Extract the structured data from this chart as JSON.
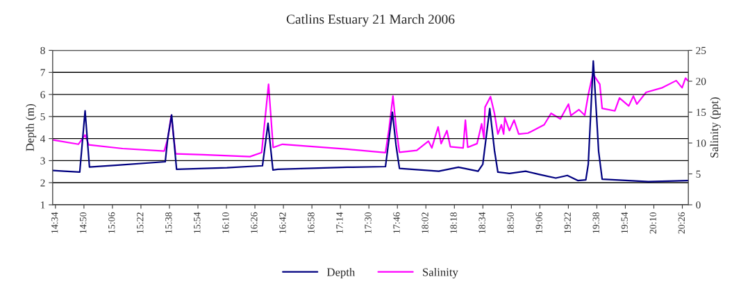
{
  "chart_data": {
    "type": "line",
    "title": "Catlins Estuary 21 March 2006",
    "ylabel": "Depth (m)",
    "y2label": "Salinity (ppt)",
    "xlim": [
      14.54,
      20.49
    ],
    "xticks": [
      {
        "value": 14.5667,
        "label": "14:34"
      },
      {
        "value": 14.8333,
        "label": "14:50"
      },
      {
        "value": 15.1,
        "label": "15:06"
      },
      {
        "value": 15.3667,
        "label": "15:22"
      },
      {
        "value": 15.6333,
        "label": "15:38"
      },
      {
        "value": 15.9,
        "label": "15:54"
      },
      {
        "value": 16.1667,
        "label": "16:10"
      },
      {
        "value": 16.4333,
        "label": "16:26"
      },
      {
        "value": 16.7,
        "label": "16:42"
      },
      {
        "value": 16.9667,
        "label": "16:58"
      },
      {
        "value": 17.2333,
        "label": "17:14"
      },
      {
        "value": 17.5,
        "label": "17:30"
      },
      {
        "value": 17.7667,
        "label": "17:46"
      },
      {
        "value": 18.0333,
        "label": "18:02"
      },
      {
        "value": 18.3,
        "label": "18:18"
      },
      {
        "value": 18.5667,
        "label": "18:34"
      },
      {
        "value": 18.8333,
        "label": "18:50"
      },
      {
        "value": 19.1,
        "label": "19:06"
      },
      {
        "value": 19.3667,
        "label": "19:22"
      },
      {
        "value": 19.6333,
        "label": "19:38"
      },
      {
        "value": 19.9,
        "label": "19:54"
      },
      {
        "value": 20.1667,
        "label": "20:10"
      },
      {
        "value": 20.4333,
        "label": "20:26"
      }
    ],
    "ylim": [
      1,
      8
    ],
    "yticks": [
      1,
      2,
      3,
      4,
      5,
      6,
      7,
      8
    ],
    "y2lim": [
      0,
      25
    ],
    "y2ticks": [
      0,
      5,
      10,
      15,
      20,
      25
    ],
    "grid": "y",
    "legend": "bottom",
    "marker": "none",
    "line_style": "solid",
    "series": [
      {
        "name": "Depth",
        "color": "#000080",
        "axis": "y",
        "x": [
          14.545,
          14.651,
          14.794,
          14.844,
          14.885,
          15.151,
          15.594,
          15.618,
          15.654,
          15.7,
          16.171,
          16.504,
          16.556,
          16.602,
          16.647,
          17.298,
          17.655,
          17.683,
          17.72,
          17.753,
          17.786,
          18.154,
          18.338,
          18.522,
          18.566,
          18.631,
          18.675,
          18.707,
          18.815,
          18.967,
          19.097,
          19.249,
          19.357,
          19.455,
          19.53,
          19.553,
          19.6,
          19.628,
          19.65,
          19.683,
          20.116,
          20.485
        ],
        "values": [
          2.55,
          2.52,
          2.48,
          5.26,
          2.71,
          2.8,
          2.95,
          4.03,
          5.07,
          2.61,
          2.68,
          2.77,
          4.69,
          2.58,
          2.61,
          2.7,
          2.73,
          3.79,
          5.2,
          3.73,
          2.65,
          2.52,
          2.7,
          2.52,
          2.84,
          5.36,
          3.47,
          2.48,
          2.42,
          2.52,
          2.37,
          2.21,
          2.33,
          2.1,
          2.13,
          2.84,
          7.52,
          5.26,
          3.42,
          2.16,
          2.05,
          2.1
        ]
      },
      {
        "name": "Salinity",
        "color": "#ff00ff",
        "axis": "y2",
        "x": [
          14.545,
          14.781,
          14.844,
          14.878,
          15.195,
          15.585,
          15.618,
          15.65,
          15.691,
          15.951,
          16.387,
          16.496,
          16.561,
          16.604,
          16.691,
          17.298,
          17.655,
          17.688,
          17.725,
          17.758,
          17.786,
          17.948,
          18.057,
          18.089,
          18.148,
          18.176,
          18.23,
          18.262,
          18.382,
          18.403,
          18.425,
          18.512,
          18.555,
          18.577,
          18.587,
          18.638,
          18.675,
          18.707,
          18.74,
          18.761,
          18.772,
          18.815,
          18.859,
          18.902,
          18.989,
          19.14,
          19.205,
          19.292,
          19.368,
          19.39,
          19.466,
          19.52,
          19.553,
          19.596,
          19.661,
          19.683,
          19.802,
          19.845,
          19.932,
          19.975,
          20.008,
          20.094,
          20.246,
          20.376,
          20.431,
          20.463,
          20.485
        ],
        "values": [
          10.5,
          9.8,
          11.3,
          9.7,
          9.1,
          8.7,
          10.7,
          14.45,
          8.25,
          8.1,
          7.8,
          8.45,
          19.5,
          9.27,
          9.8,
          9.0,
          8.45,
          12.2,
          17.6,
          12.0,
          8.5,
          8.8,
          10.3,
          9.2,
          12.6,
          9.9,
          12.0,
          9.4,
          9.2,
          13.7,
          9.3,
          9.9,
          13.1,
          10.7,
          15.8,
          17.5,
          14.8,
          11.45,
          12.95,
          11.45,
          14.1,
          12.0,
          13.7,
          11.45,
          11.6,
          12.95,
          14.8,
          13.9,
          16.3,
          14.45,
          15.4,
          14.5,
          17.8,
          21.2,
          19.5,
          15.6,
          15.2,
          17.3,
          16.0,
          17.6,
          16.3,
          18.2,
          18.95,
          20.1,
          18.95,
          20.5,
          20.1
        ]
      }
    ]
  }
}
